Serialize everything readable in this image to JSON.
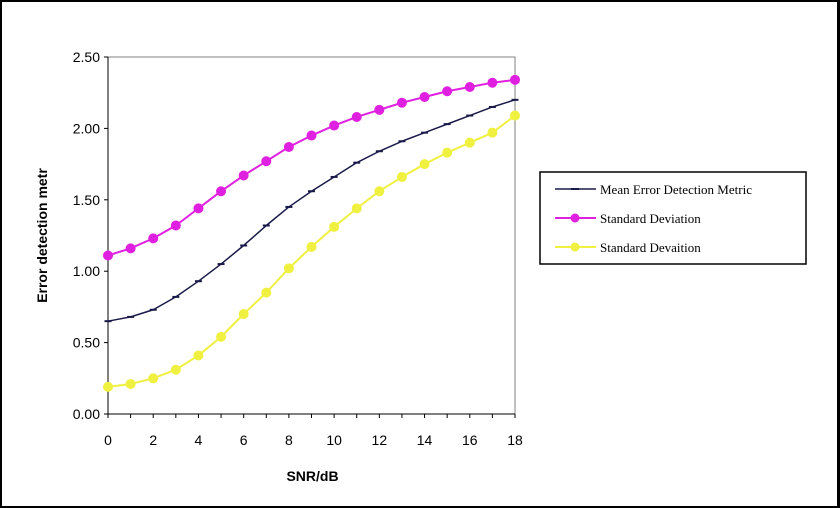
{
  "chart_data": {
    "type": "line",
    "title": "",
    "xlabel": "SNR/dB",
    "ylabel": "Error detection metr",
    "xlim": [
      0,
      18
    ],
    "ylim": [
      0,
      2.5
    ],
    "x_ticks": [
      "0",
      "2",
      "4",
      "6",
      "8",
      "10",
      "12",
      "14",
      "16",
      "18"
    ],
    "y_ticks": [
      "0.00",
      "0.50",
      "1.00",
      "1.50",
      "2.00",
      "2.50"
    ],
    "grid": false,
    "legend_position": "right",
    "x": [
      0,
      1,
      2,
      3,
      4,
      5,
      6,
      7,
      8,
      9,
      10,
      11,
      12,
      13,
      14,
      15,
      16,
      17,
      18
    ],
    "series": [
      {
        "name": "Mean Error Detection Metric",
        "color": "#1a1a4a",
        "marker": "dash",
        "values": [
          0.65,
          0.68,
          0.73,
          0.82,
          0.93,
          1.05,
          1.18,
          1.32,
          1.45,
          1.56,
          1.66,
          1.76,
          1.84,
          1.91,
          1.97,
          2.03,
          2.09,
          2.15,
          2.2
        ]
      },
      {
        "name": "Standard Deviation",
        "color": "#e020e0",
        "marker": "circle",
        "values": [
          1.11,
          1.16,
          1.23,
          1.32,
          1.44,
          1.56,
          1.67,
          1.77,
          1.87,
          1.95,
          2.02,
          2.08,
          2.13,
          2.18,
          2.22,
          2.26,
          2.29,
          2.32,
          2.34
        ]
      },
      {
        "name": "Standard Devaition",
        "color": "#f0f040",
        "marker": "circle",
        "values": [
          0.19,
          0.21,
          0.25,
          0.31,
          0.41,
          0.54,
          0.7,
          0.85,
          1.02,
          1.17,
          1.31,
          1.44,
          1.56,
          1.66,
          1.75,
          1.83,
          1.9,
          1.97,
          2.09
        ]
      }
    ]
  }
}
